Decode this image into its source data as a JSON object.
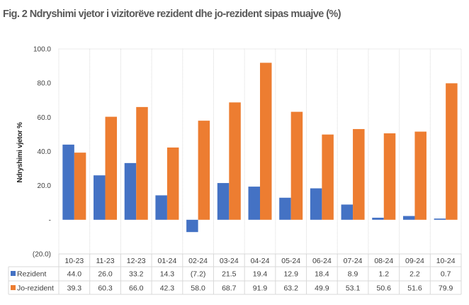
{
  "chart_data": {
    "type": "bar",
    "title": "Fig. 2 Ndryshimi vjetor i vizitorëve rezident dhe jo-rezident sipas muajve (%)",
    "xlabel": "",
    "ylabel": "Ndryshimi vjetor %",
    "ylim": [
      -20,
      100
    ],
    "yticks": [
      100,
      80,
      60,
      40,
      20,
      0,
      -20
    ],
    "ytick_labels": [
      "100.0",
      "80.0",
      "60.0",
      "40.0",
      "20.0",
      "-",
      "(20.0)"
    ],
    "grid": "vertical dotted",
    "legend": "data-table",
    "categories": [
      "10-23",
      "11-23",
      "12-23",
      "01-24",
      "02-24",
      "03-24",
      "04-24",
      "05-24",
      "06-24",
      "07-24",
      "08-24",
      "09-24",
      "10-24"
    ],
    "series": [
      {
        "name": "Rezident",
        "color": "#4472C4",
        "values": [
          44.0,
          26.0,
          33.2,
          14.3,
          -7.2,
          21.5,
          19.4,
          12.9,
          18.4,
          8.9,
          1.2,
          2.2,
          0.7
        ],
        "labels": [
          "44.0",
          "26.0",
          "33.2",
          "14.3",
          "(7.2)",
          "21.5",
          "19.4",
          "12.9",
          "18.4",
          "8.9",
          "1.2",
          "2.2",
          "0.7"
        ]
      },
      {
        "name": "Jo-rezident",
        "color": "#ED7D31",
        "values": [
          39.3,
          60.3,
          66.0,
          42.3,
          58.0,
          68.7,
          91.9,
          63.2,
          49.9,
          53.1,
          50.6,
          51.6,
          79.9
        ],
        "labels": [
          "39.3",
          "60.3",
          "66.0",
          "42.3",
          "58.0",
          "68.7",
          "91.9",
          "63.2",
          "49.9",
          "53.1",
          "50.6",
          "51.6",
          "79.9"
        ]
      }
    ]
  }
}
